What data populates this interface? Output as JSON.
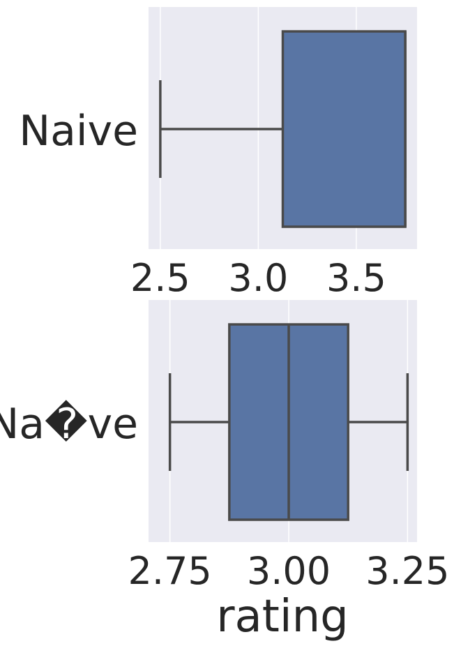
{
  "chart_data": [
    {
      "type": "box",
      "xlim": [
        2.44,
        3.81
      ],
      "xticks": [
        "2.5",
        "3.0",
        "3.5"
      ],
      "xtick_values": [
        2.5,
        3.0,
        3.5
      ],
      "grid": true,
      "box": {
        "category": "Naive",
        "whisker_low": 2.5,
        "q1": 3.125,
        "median": 3.75,
        "q3": 3.75,
        "whisker_high": 3.75
      },
      "colors": {
        "background": "#EAEAF2",
        "box_fill": "#5975A4",
        "line": "#4A4A4A",
        "grid": "#FFFFFF"
      }
    },
    {
      "type": "box",
      "xlim": [
        2.705,
        3.27
      ],
      "xticks": [
        "2.75",
        "3.00",
        "3.25"
      ],
      "xtick_values": [
        2.75,
        3.0,
        3.25
      ],
      "xlabel": "rating",
      "grid": true,
      "box": {
        "category": "Na�ve",
        "whisker_low": 2.75,
        "q1": 2.875,
        "median": 3.0,
        "q3": 3.125,
        "whisker_high": 3.25
      },
      "colors": {
        "background": "#EAEAF2",
        "box_fill": "#5975A4",
        "line": "#4A4A4A",
        "grid": "#FFFFFF"
      }
    }
  ]
}
